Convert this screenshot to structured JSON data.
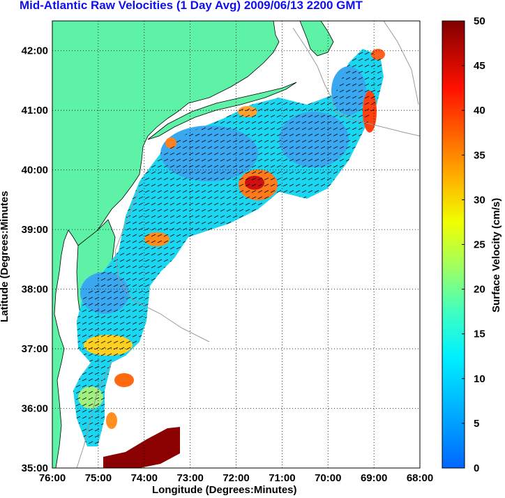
{
  "map": {
    "title": "Mid-Atlantic Raw Velocities (1 Day Avg) 2009/06/13 2200 GMT",
    "xlabel": "Longitude (Degrees:Minutes)",
    "ylabel": "Latitude (Degrees:Minutes",
    "lon_ticks": [
      "76:00",
      "75:00",
      "74:00",
      "73:00",
      "72:00",
      "71:00",
      "70:00",
      "69:00",
      "68:00"
    ],
    "lat_ticks": [
      "42:00",
      "41:00",
      "40:00",
      "39:00",
      "38:00",
      "37:00",
      "36:00",
      "35:00"
    ],
    "lon_range": [
      -76,
      -68
    ],
    "lat_range": [
      35,
      42.5
    ],
    "land_color": "#5ef2a6",
    "grid": "dotted"
  },
  "colorbar": {
    "label": "Surface Velocity (cm/s)",
    "ticks": [
      "50",
      "45",
      "40",
      "35",
      "30",
      "25",
      "20",
      "15",
      "10",
      "5",
      "0"
    ],
    "range": [
      0,
      50
    ],
    "colormap": "jet"
  }
}
